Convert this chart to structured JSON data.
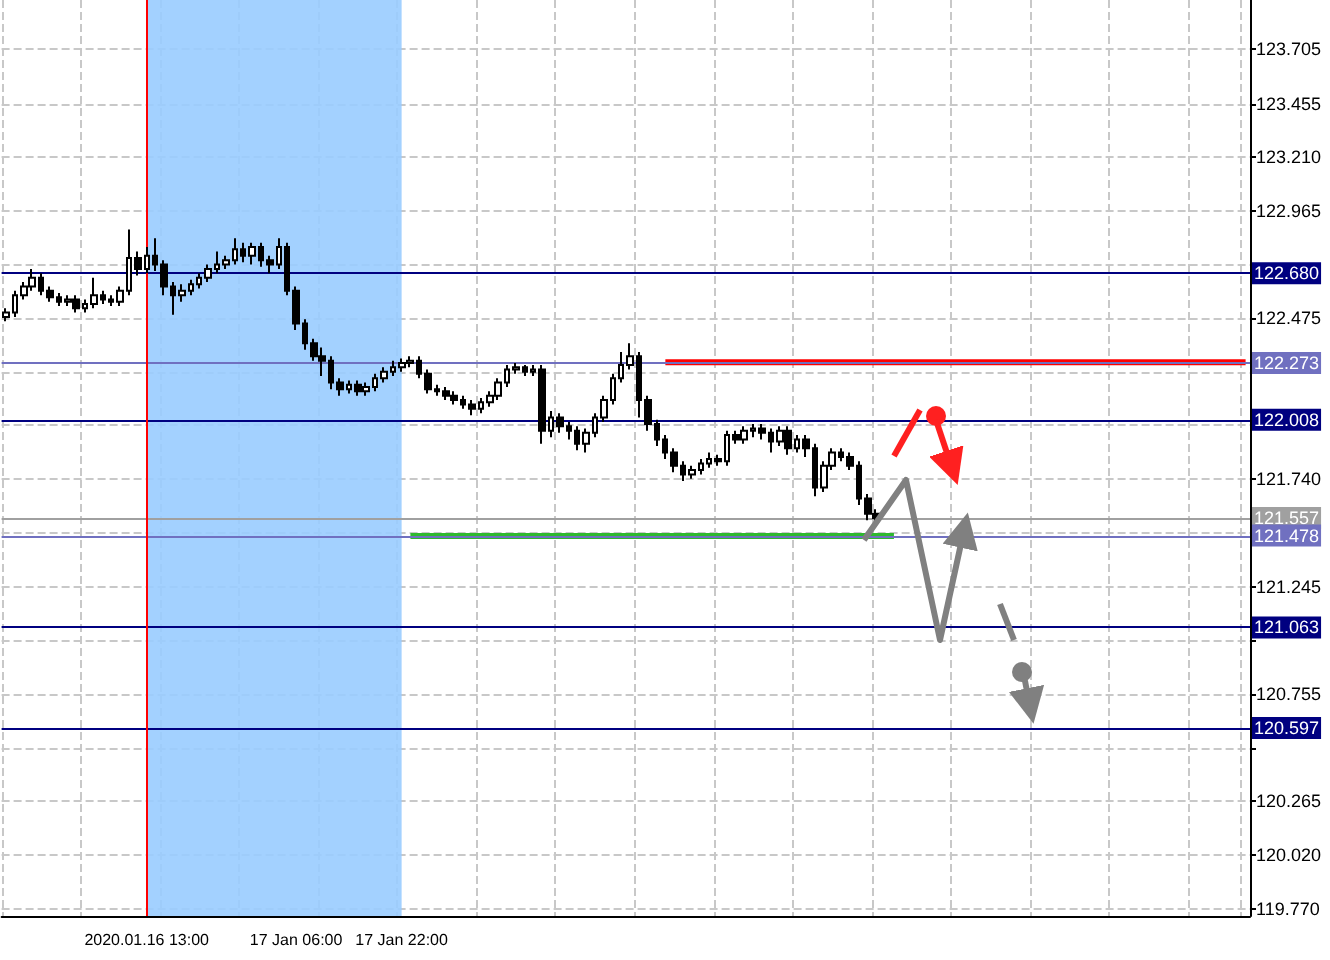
{
  "chart_data": {
    "type": "candlestick",
    "color": "#000000",
    "categories": [
      null,
      null,
      null,
      null,
      null,
      null,
      null,
      null,
      null,
      null,
      null,
      null,
      null,
      null,
      null,
      null,
      "2020.01.16 13:00",
      null,
      null,
      null,
      null,
      null,
      null,
      null,
      null,
      null,
      null,
      null,
      null,
      null,
      null,
      null,
      null,
      "17 Jan 06:00",
      null,
      null,
      null,
      null,
      null,
      null,
      null,
      null,
      null,
      null,
      null,
      "17 Jan 22:00",
      null,
      null,
      null,
      null,
      null,
      null,
      null,
      null,
      null,
      null,
      null,
      null,
      null,
      null,
      null,
      null,
      null,
      null,
      null,
      null,
      null,
      null,
      null,
      null,
      null,
      null,
      null,
      null,
      null,
      null,
      null,
      null,
      null,
      null,
      null,
      null,
      null,
      null,
      null,
      null,
      null,
      null,
      null,
      null,
      null,
      null,
      null,
      null,
      null,
      null,
      null,
      null,
      null,
      null,
      null,
      null,
      null,
      null,
      null,
      null,
      null,
      null,
      null,
      null,
      null,
      null,
      null,
      null,
      null,
      null,
      null,
      null,
      null,
      null,
      null,
      null,
      null,
      null,
      null,
      null,
      null,
      null,
      null,
      null,
      null,
      null,
      null,
      null,
      null,
      null,
      null,
      null,
      null,
      null,
      null,
      null
    ],
    "ohlc": [
      [
        122.48,
        122.52,
        122.46,
        122.5
      ],
      [
        122.5,
        122.6,
        122.48,
        122.58
      ],
      [
        122.58,
        122.64,
        122.56,
        122.62
      ],
      [
        122.62,
        122.7,
        122.6,
        122.66
      ],
      [
        122.66,
        122.68,
        122.58,
        122.6
      ],
      [
        122.6,
        122.62,
        122.55,
        122.57
      ],
      [
        122.57,
        122.59,
        122.53,
        122.55
      ],
      [
        122.55,
        122.58,
        122.53,
        122.56
      ],
      [
        122.56,
        122.58,
        122.5,
        122.52
      ],
      [
        122.52,
        122.56,
        122.5,
        122.54
      ],
      [
        122.54,
        122.66,
        122.52,
        122.58
      ],
      [
        122.58,
        122.6,
        122.54,
        122.56
      ],
      [
        122.56,
        122.58,
        122.53,
        122.55
      ],
      [
        122.55,
        122.62,
        122.53,
        122.6
      ],
      [
        122.6,
        122.88,
        122.58,
        122.75
      ],
      [
        122.75,
        122.78,
        122.67,
        122.7
      ],
      [
        122.7,
        122.8,
        122.68,
        122.76
      ],
      [
        122.76,
        122.84,
        122.69,
        122.72
      ],
      [
        122.72,
        122.74,
        122.58,
        122.62
      ],
      [
        122.62,
        122.64,
        122.49,
        122.58
      ],
      [
        122.58,
        122.63,
        122.55,
        122.6
      ],
      [
        122.6,
        122.65,
        122.58,
        122.63
      ],
      [
        122.63,
        122.68,
        122.61,
        122.66
      ],
      [
        122.66,
        122.72,
        122.64,
        122.7
      ],
      [
        122.7,
        122.78,
        122.68,
        122.72
      ],
      [
        122.72,
        122.76,
        122.7,
        122.74
      ],
      [
        122.74,
        122.84,
        122.72,
        122.79
      ],
      [
        122.79,
        122.82,
        122.73,
        122.76
      ],
      [
        122.76,
        122.82,
        122.72,
        122.8
      ],
      [
        122.8,
        122.82,
        122.71,
        122.74
      ],
      [
        122.74,
        122.76,
        122.68,
        122.72
      ],
      [
        122.72,
        122.84,
        122.7,
        122.8
      ],
      [
        122.8,
        122.82,
        122.58,
        122.6
      ],
      [
        122.6,
        122.62,
        122.42,
        122.45
      ],
      [
        122.45,
        122.47,
        122.33,
        122.36
      ],
      [
        122.36,
        122.38,
        122.28,
        122.3
      ],
      [
        122.3,
        122.34,
        122.21,
        122.28
      ],
      [
        122.28,
        122.3,
        122.15,
        122.18
      ],
      [
        122.18,
        122.2,
        122.12,
        122.15
      ],
      [
        122.15,
        122.19,
        122.13,
        122.17
      ],
      [
        122.17,
        122.19,
        122.12,
        122.14
      ],
      [
        122.14,
        122.18,
        122.12,
        122.16
      ],
      [
        122.16,
        122.22,
        122.14,
        122.2
      ],
      [
        122.2,
        122.25,
        122.18,
        122.23
      ],
      [
        122.23,
        122.28,
        122.21,
        122.25
      ],
      [
        122.25,
        122.29,
        122.23,
        122.27
      ],
      [
        122.27,
        122.3,
        122.25,
        122.28
      ],
      [
        122.28,
        122.3,
        122.2,
        122.22
      ],
      [
        122.22,
        122.24,
        122.13,
        122.15
      ],
      [
        122.15,
        122.17,
        122.12,
        122.14
      ],
      [
        122.14,
        122.16,
        122.1,
        122.12
      ],
      [
        122.12,
        122.14,
        122.08,
        122.1
      ],
      [
        122.1,
        122.12,
        122.06,
        122.08
      ],
      [
        122.08,
        122.1,
        122.03,
        122.06
      ],
      [
        122.06,
        122.11,
        122.04,
        122.09
      ],
      [
        122.09,
        122.14,
        122.07,
        122.12
      ],
      [
        122.12,
        122.2,
        122.1,
        122.18
      ],
      [
        122.18,
        122.26,
        122.16,
        122.24
      ],
      [
        122.24,
        122.27,
        122.22,
        122.25
      ],
      [
        122.25,
        122.26,
        122.21,
        122.23
      ],
      [
        122.23,
        122.26,
        122.21,
        122.24
      ],
      [
        122.24,
        122.26,
        121.9,
        121.96
      ],
      [
        121.96,
        122.05,
        121.93,
        122.02
      ],
      [
        122.02,
        122.04,
        121.95,
        121.98
      ],
      [
        121.98,
        122.0,
        121.92,
        121.96
      ],
      [
        121.96,
        121.98,
        121.87,
        121.9
      ],
      [
        121.9,
        121.97,
        121.86,
        121.95
      ],
      [
        121.95,
        122.04,
        121.93,
        122.02
      ],
      [
        122.02,
        122.12,
        122.0,
        122.1
      ],
      [
        122.1,
        122.22,
        122.08,
        122.2
      ],
      [
        122.2,
        122.32,
        122.18,
        122.26
      ],
      [
        122.26,
        122.36,
        122.24,
        122.3
      ],
      [
        122.3,
        122.32,
        122.02,
        122.1
      ],
      [
        122.1,
        122.12,
        121.96,
        121.99
      ],
      [
        121.99,
        122.01,
        121.89,
        121.92
      ],
      [
        121.92,
        121.94,
        121.83,
        121.86
      ],
      [
        121.86,
        121.88,
        121.77,
        121.8
      ],
      [
        121.8,
        121.82,
        121.73,
        121.76
      ],
      [
        121.76,
        121.8,
        121.74,
        121.78
      ],
      [
        121.78,
        121.83,
        121.76,
        121.81
      ],
      [
        121.81,
        121.86,
        121.79,
        121.83
      ],
      [
        121.83,
        121.85,
        121.8,
        121.82
      ],
      [
        121.82,
        121.96,
        121.8,
        121.94
      ],
      [
        121.94,
        121.96,
        121.9,
        121.92
      ],
      [
        121.92,
        121.98,
        121.9,
        121.96
      ],
      [
        121.96,
        121.99,
        121.93,
        121.97
      ],
      [
        121.97,
        121.99,
        121.92,
        121.95
      ],
      [
        121.95,
        121.97,
        121.86,
        121.91
      ],
      [
        121.91,
        121.98,
        121.89,
        121.96
      ],
      [
        121.96,
        121.98,
        121.85,
        121.88
      ],
      [
        121.88,
        121.94,
        121.86,
        121.92
      ],
      [
        121.92,
        121.94,
        121.84,
        121.88
      ],
      [
        121.88,
        121.9,
        121.66,
        121.7
      ],
      [
        121.7,
        121.82,
        121.68,
        121.8
      ],
      [
        121.8,
        121.88,
        121.78,
        121.86
      ],
      [
        121.86,
        121.88,
        121.82,
        121.84
      ],
      [
        121.84,
        121.86,
        121.78,
        121.8
      ],
      [
        121.8,
        121.82,
        121.62,
        121.65
      ],
      [
        121.65,
        121.67,
        121.55,
        121.58
      ],
      [
        121.58,
        121.6,
        121.53,
        121.56
      ],
      null,
      null,
      null,
      null,
      null,
      null,
      null,
      null,
      null,
      null,
      null,
      null,
      null,
      null,
      null,
      null,
      null,
      null,
      null,
      null,
      null,
      null,
      null,
      null,
      null,
      null,
      null,
      null,
      null,
      null,
      null,
      null,
      null,
      null,
      null,
      null,
      null,
      null,
      null,
      null,
      null,
      null
    ],
    "series": [
      {
        "type": "line",
        "color": "#ff0000",
        "values": [
          null,
          null,
          null,
          null,
          null,
          null,
          null,
          null,
          null,
          null,
          null,
          null,
          null,
          null,
          null,
          null,
          null,
          null,
          null,
          null,
          null,
          null,
          null,
          null,
          null,
          null,
          null,
          null,
          null,
          null,
          null,
          null,
          null,
          null,
          null,
          null,
          null,
          null,
          null,
          null,
          null,
          null,
          null,
          null,
          null,
          null,
          null,
          null,
          null,
          null,
          null,
          null,
          null,
          null,
          null,
          null,
          null,
          null,
          null,
          null,
          null,
          null,
          null,
          null,
          null,
          null,
          null,
          null,
          null,
          null,
          null,
          null,
          null,
          null,
          null,
          122.273,
          122.273,
          122.273,
          122.273,
          122.273,
          122.273,
          122.273,
          122.273,
          122.273,
          122.273,
          122.273,
          122.273,
          122.273,
          122.273,
          122.273,
          122.273,
          122.273,
          122.273,
          122.273,
          122.273,
          122.273,
          122.273,
          122.273,
          122.273,
          122.273,
          122.273,
          122.273,
          122.273,
          122.273,
          122.273,
          122.273,
          122.273,
          122.273,
          122.273,
          122.273,
          122.273,
          122.273,
          122.273,
          122.273,
          122.273,
          122.273,
          122.273,
          122.273,
          122.273,
          122.273,
          122.273,
          122.273,
          122.273,
          122.273,
          122.273,
          122.273,
          122.273,
          122.273,
          122.273,
          122.273,
          122.273,
          122.273,
          122.273,
          122.273,
          122.273,
          122.273,
          122.273,
          122.273,
          122.273,
          122.273,
          122.273,
          122.273
        ]
      },
      {
        "type": "line",
        "color": "#2eb82e",
        "values": [
          null,
          null,
          null,
          null,
          null,
          null,
          null,
          null,
          null,
          null,
          null,
          null,
          null,
          null,
          null,
          null,
          null,
          null,
          null,
          null,
          null,
          null,
          null,
          null,
          null,
          null,
          null,
          null,
          null,
          null,
          null,
          null,
          null,
          null,
          null,
          null,
          null,
          null,
          null,
          null,
          null,
          null,
          null,
          null,
          null,
          null,
          121.478,
          121.478,
          121.478,
          121.478,
          121.478,
          121.478,
          121.478,
          121.478,
          121.478,
          121.478,
          121.478,
          121.478,
          121.478,
          121.478,
          121.478,
          121.478,
          121.478,
          121.478,
          121.478,
          121.478,
          121.478,
          121.478,
          121.478,
          121.478,
          121.478,
          121.478,
          121.478,
          121.478,
          121.478,
          121.478,
          121.478,
          121.478,
          121.478,
          121.478,
          121.478,
          121.478,
          121.478,
          121.478,
          121.478,
          121.478,
          121.478,
          121.478,
          121.478,
          121.478,
          121.478,
          121.478,
          121.478,
          121.478,
          121.478,
          121.478,
          121.478,
          121.478,
          121.478,
          121.478,
          121.478,
          121.478,
          null,
          null,
          null,
          null,
          null,
          null,
          null,
          null,
          null,
          null,
          null,
          null,
          null,
          null,
          null,
          null,
          null,
          null,
          null,
          null,
          null,
          null,
          null,
          null,
          null,
          null,
          null,
          null,
          null,
          null,
          null,
          null,
          null,
          null,
          null,
          null,
          null,
          null,
          null,
          null
        ]
      }
    ],
    "ylim": [
      119.74,
      123.93
    ],
    "yticks": [
      123.705,
      123.455,
      {
        "value": 123.21,
        "label": "123.210"
      },
      122.965,
      {
        "value": 122.72,
        "label": null
      },
      122.475,
      {
        "value": 122.23,
        "label": null
      },
      {
        "value": 121.985,
        "label": null
      },
      {
        "value": 121.74,
        "label": "121.740"
      },
      {
        "value": 121.495,
        "label": null
      },
      121.245,
      {
        "value": 121.0,
        "label": null
      },
      120.755,
      {
        "value": 120.51,
        "label": null
      },
      120.265,
      {
        "value": 120.02,
        "label": "120.020"
      },
      {
        "value": 119.77,
        "label": "119.770"
      }
    ],
    "ref_lines": [
      {
        "axis": "y",
        "value": 122.68,
        "label": "122.680",
        "color": "#000080"
      },
      {
        "axis": "y",
        "value": 122.273,
        "label": "122.273",
        "color": "#7070c0"
      },
      {
        "axis": "y",
        "value": 122.008,
        "label": "122.008",
        "color": "#000080"
      },
      {
        "axis": "y",
        "value": 121.557,
        "label": "121.557",
        "color": "#a0a0a0"
      },
      {
        "axis": "y",
        "value": 121.478,
        "label": "121.478",
        "color": "#7070c0"
      },
      {
        "axis": "y",
        "value": 121.063,
        "label": "121.063",
        "color": "#000080"
      },
      {
        "axis": "y",
        "value": 120.597,
        "label": "120.597",
        "color": "#000080"
      },
      {
        "axis": "x",
        "value": "2020.01.16 13:00",
        "color": "#ff0000"
      }
    ],
    "bands": [
      {
        "axis": "x",
        "from": "2020.01.16 13:00",
        "to": "17 Jan 22:00",
        "color": "#99ccff"
      }
    ],
    "grid": true
  }
}
